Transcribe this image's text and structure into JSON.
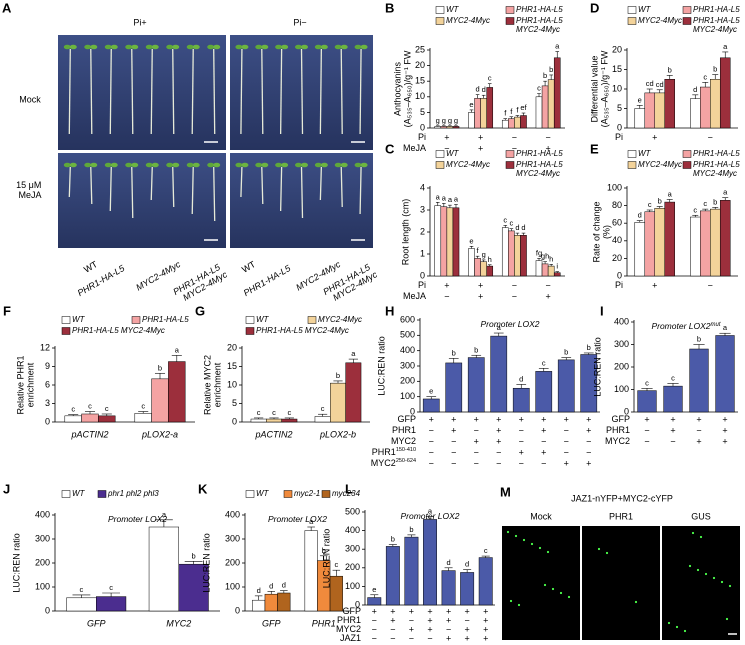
{
  "photo_panels": [
    {
      "panel": "A",
      "columns": [
        "Pi+",
        "Pi−"
      ],
      "rows": [
        "Mock",
        "15 μM MeJA"
      ],
      "genotypes": [
        "WT",
        "PHR1-HA-L5",
        "MYC2-4Myc",
        "PHR1-HA-L5 MYC2-4Myc"
      ]
    },
    {
      "panel": "M",
      "title": "JAZ1-nYFP+MYC2-cYFP",
      "columns": [
        "Mock",
        "PHR1",
        "GUS"
      ]
    }
  ],
  "chart_data": [
    {
      "panel": "B",
      "type": "bar",
      "ylabel": [
        "Anthocyanins",
        "(A₅₃₅–A₆₅₀)/g⁻¹ FW"
      ],
      "ylim": [
        0,
        25
      ],
      "yticks": [
        0,
        5,
        10,
        15,
        20,
        25
      ],
      "factor_rows": [
        {
          "label": "Pi",
          "signs": [
            "+",
            "+",
            "−",
            "−"
          ]
        },
        {
          "label": "MeJA",
          "signs": [
            "−",
            "+",
            "−",
            "+"
          ]
        }
      ],
      "series": [
        {
          "name": "WT",
          "color": "#ffffff",
          "values": [
            0.5,
            5,
            2.5,
            10
          ],
          "errors": [
            0.2,
            0.8,
            0.5,
            1
          ],
          "letters": [
            "g",
            "e",
            "f",
            "c"
          ]
        },
        {
          "name": "PHR1-HA-L5",
          "color": "#f4a3a3",
          "values": [
            0.5,
            9.5,
            3,
            13.5
          ],
          "errors": [
            0.2,
            1.2,
            0.6,
            1.5
          ],
          "letters": [
            "g",
            "d",
            "f",
            "b"
          ]
        },
        {
          "name": "MYC2-4Myc",
          "color": "#f3d39a",
          "values": [
            0.5,
            9.5,
            3.5,
            15.5
          ],
          "errors": [
            0.2,
            1,
            0.5,
            1.5
          ],
          "letters": [
            "g",
            "d",
            "f",
            "b"
          ]
        },
        {
          "name": "PHR1-HA-L5 MYC2-4Myc",
          "color": "#9c2f3c",
          "values": [
            0.5,
            13,
            4,
            22.5
          ],
          "errors": [
            0.2,
            1.2,
            0.8,
            2
          ],
          "letters": [
            "g",
            "c",
            "ef",
            "a"
          ]
        }
      ]
    },
    {
      "panel": "C",
      "type": "bar",
      "ylabel": [
        "Root length (cm)"
      ],
      "ylim": [
        0,
        4
      ],
      "yticks": [
        0,
        1,
        2,
        3,
        4
      ],
      "factor_rows": [
        {
          "label": "Pi",
          "signs": [
            "+",
            "+",
            "−",
            "−"
          ]
        },
        {
          "label": "MeJA",
          "signs": [
            "−",
            "+",
            "−",
            "+"
          ]
        }
      ],
      "series": [
        {
          "name": "WT",
          "color": "#ffffff",
          "values": [
            3.2,
            1.25,
            2.2,
            0.7
          ],
          "errors": [
            0.15,
            0.1,
            0.1,
            0.1
          ],
          "letters": [
            "a",
            "e",
            "c",
            "fg"
          ]
        },
        {
          "name": "PHR1-HA-L5",
          "color": "#f4a3a3",
          "values": [
            3.15,
            0.8,
            2.05,
            0.55
          ],
          "errors": [
            0.15,
            0.1,
            0.1,
            0.1
          ],
          "letters": [
            "a",
            "f",
            "c",
            "gh"
          ]
        },
        {
          "name": "MYC2-4Myc",
          "color": "#f3d39a",
          "values": [
            3.1,
            0.65,
            1.85,
            0.45
          ],
          "errors": [
            0.12,
            0.08,
            0.1,
            0.08
          ],
          "letters": [
            "a",
            "g",
            "d",
            "h"
          ]
        },
        {
          "name": "PHR1-HA-L5 MYC2-4Myc",
          "color": "#9c2f3c",
          "values": [
            3.1,
            0.45,
            1.85,
            0.15
          ],
          "errors": [
            0.15,
            0.06,
            0.1,
            0.05
          ],
          "letters": [
            "a",
            "h",
            "d",
            "i"
          ]
        }
      ]
    },
    {
      "panel": "D",
      "type": "bar",
      "ylabel": [
        "Differential value",
        "(A₅₃₅–A₆₅₀)/g⁻¹ FW"
      ],
      "ylim": [
        0,
        20
      ],
      "yticks": [
        0,
        5,
        10,
        15,
        20
      ],
      "factor_rows": [
        {
          "label": "Pi",
          "signs": [
            "+",
            "−"
          ]
        }
      ],
      "series": [
        {
          "name": "WT",
          "color": "#ffffff",
          "values": [
            5,
            7.5
          ],
          "errors": [
            0.8,
            1
          ],
          "letters": [
            "e",
            "d"
          ]
        },
        {
          "name": "PHR1-HA-L5",
          "color": "#f4a3a3",
          "values": [
            9,
            10.5
          ],
          "errors": [
            1,
            1.2
          ],
          "letters": [
            "cd",
            "c"
          ]
        },
        {
          "name": "MYC2-4Myc",
          "color": "#f3d39a",
          "values": [
            9,
            12.5
          ],
          "errors": [
            0.8,
            1.2
          ],
          "letters": [
            "cd",
            "b"
          ]
        },
        {
          "name": "PHR1-HA-L5 MYC2-4Myc",
          "color": "#9c2f3c",
          "values": [
            12.5,
            18
          ],
          "errors": [
            1,
            1.5
          ],
          "letters": [
            "b",
            "a"
          ]
        }
      ]
    },
    {
      "panel": "E",
      "type": "bar",
      "ylabel": [
        "Rate of change",
        "(%)"
      ],
      "ylim": [
        0,
        100
      ],
      "yticks": [
        0,
        20,
        40,
        60,
        80,
        100
      ],
      "factor_rows": [
        {
          "label": "Pi",
          "signs": [
            "+",
            "−"
          ]
        }
      ],
      "series": [
        {
          "name": "WT",
          "color": "#ffffff",
          "values": [
            61,
            67
          ],
          "errors": [
            2,
            2
          ],
          "letters": [
            "d",
            "c"
          ]
        },
        {
          "name": "PHR1-HA-L5",
          "color": "#f4a3a3",
          "values": [
            73,
            74
          ],
          "errors": [
            2,
            2
          ],
          "letters": [
            "c",
            "c"
          ]
        },
        {
          "name": "MYC2-4Myc",
          "color": "#f3d39a",
          "values": [
            77,
            76
          ],
          "errors": [
            2,
            2
          ],
          "letters": [
            "b",
            "b"
          ]
        },
        {
          "name": "PHR1-HA-L5 MYC2-4Myc",
          "color": "#9c2f3c",
          "values": [
            84,
            86
          ],
          "errors": [
            3,
            3
          ],
          "letters": [
            "a",
            "a"
          ]
        }
      ]
    },
    {
      "panel": "F",
      "type": "bar",
      "ylabel": [
        "Relative PHR1",
        "enrichment"
      ],
      "ylim": [
        0,
        12
      ],
      "yticks": [
        0,
        3,
        6,
        9,
        12
      ],
      "categories": [
        "pACTIN2",
        "pLOX2-a"
      ],
      "series": [
        {
          "name": "WT",
          "color": "#ffffff",
          "values": [
            1,
            1.4
          ],
          "errors": [
            0.2,
            0.3
          ],
          "letters": [
            "c",
            "c"
          ]
        },
        {
          "name": "PHR1-HA-L5",
          "color": "#f4a3a3",
          "values": [
            1.3,
            7
          ],
          "errors": [
            0.4,
            0.9
          ],
          "letters": [
            "c",
            "b"
          ]
        },
        {
          "name": "PHR1-HA-L5 MYC2-4Myc",
          "color": "#9c2f3c",
          "values": [
            1,
            9.8
          ],
          "errors": [
            0.3,
            1
          ],
          "letters": [
            "c",
            "a"
          ]
        }
      ]
    },
    {
      "panel": "G",
      "type": "bar",
      "ylabel": [
        "Relative MYC2",
        "enrichment"
      ],
      "ylim": [
        0,
        20
      ],
      "yticks": [
        0,
        5,
        10,
        15,
        20
      ],
      "categories": [
        "pACTIN2",
        "pLOX2-b"
      ],
      "series": [
        {
          "name": "WT",
          "color": "#ffffff",
          "values": [
            0.8,
            1.5
          ],
          "errors": [
            0.3,
            0.6
          ],
          "letters": [
            "c",
            "c"
          ]
        },
        {
          "name": "MYC2-4Myc",
          "color": "#f3d39a",
          "values": [
            0.8,
            10.5
          ],
          "errors": [
            0.3,
            0.6
          ],
          "letters": [
            "c",
            "b"
          ]
        },
        {
          "name": "PHR1-HA-L5 MYC2-4Myc",
          "color": "#9c2f3c",
          "values": [
            0.8,
            16
          ],
          "errors": [
            0.3,
            1
          ],
          "letters": [
            "c",
            "a"
          ]
        }
      ]
    },
    {
      "panel": "H",
      "type": "bar",
      "ylabel": [
        "LUC:REN ratio"
      ],
      "ylim": [
        0,
        600
      ],
      "yticks": [
        0,
        100,
        200,
        300,
        400,
        500,
        600
      ],
      "annotation": "Promoter LOX2",
      "color": "#4b5aa8",
      "values": [
        85,
        320,
        355,
        495,
        155,
        265,
        340,
        375
      ],
      "errors": [
        15,
        30,
        15,
        20,
        25,
        20,
        15,
        10
      ],
      "letters": [
        "e",
        "b",
        "b",
        "a",
        "d",
        "c",
        "b",
        "b"
      ],
      "factor_rows": [
        {
          "label": "GFP",
          "signs": [
            "+",
            "+",
            "+",
            "+",
            "+",
            "+",
            "+",
            "+"
          ]
        },
        {
          "label": "PHR1",
          "signs": [
            "−",
            "+",
            "−",
            "+",
            "−",
            "+",
            "−",
            "+"
          ]
        },
        {
          "label": "MYC2",
          "signs": [
            "−",
            "−",
            "+",
            "+",
            "−",
            "−",
            "−",
            "−"
          ]
        },
        {
          "label": "PHR1",
          "sup": "150-410",
          "signs": [
            "−",
            "−",
            "−",
            "−",
            "+",
            "+",
            "−",
            "−"
          ]
        },
        {
          "label": "MYC2",
          "sup": "250-624",
          "signs": [
            "−",
            "−",
            "−",
            "−",
            "−",
            "−",
            "+",
            "+"
          ]
        }
      ]
    },
    {
      "panel": "I",
      "type": "bar",
      "ylabel": [
        "LUC:REN ratio"
      ],
      "ylim": [
        0,
        400
      ],
      "yticks": [
        0,
        100,
        200,
        300,
        400
      ],
      "annotation": "Promoter LOX2",
      "annotation_sup": "mut",
      "color": "#4b5aa8",
      "values": [
        95,
        115,
        280,
        340
      ],
      "errors": [
        10,
        12,
        20,
        10
      ],
      "letters": [
        "c",
        "c",
        "b",
        "a"
      ],
      "factor_rows": [
        {
          "label": "GFP",
          "signs": [
            "+",
            "+",
            "+",
            "+"
          ]
        },
        {
          "label": "PHR1",
          "signs": [
            "−",
            "+",
            "−",
            "+"
          ]
        },
        {
          "label": "MYC2",
          "signs": [
            "−",
            "−",
            "+",
            "+"
          ]
        }
      ]
    },
    {
      "panel": "J",
      "type": "bar",
      "ylabel": [
        "LUC:REN ratio"
      ],
      "ylim": [
        0,
        400
      ],
      "yticks": [
        0,
        100,
        200,
        300,
        400
      ],
      "annotation": "Promoter LOX2",
      "categories": [
        "GFP",
        "MYC2"
      ],
      "series": [
        {
          "name": "WT",
          "color": "#ffffff",
          "values": [
            55,
            350
          ],
          "errors": [
            12,
            30
          ],
          "letters": [
            "c",
            "a"
          ]
        },
        {
          "name": "phr1 phl2 phl3",
          "color": "#4b2d8f",
          "values": [
            60,
            195
          ],
          "errors": [
            15,
            12
          ],
          "letters": [
            "c",
            "b"
          ]
        }
      ]
    },
    {
      "panel": "K",
      "type": "bar",
      "ylabel": [
        "LUC:REN ratio"
      ],
      "ylim": [
        0,
        400
      ],
      "yticks": [
        0,
        100,
        200,
        300,
        400
      ],
      "annotation": "Promoter LOX2",
      "categories": [
        "GFP",
        "PHR1"
      ],
      "series": [
        {
          "name": "WT",
          "color": "#ffffff",
          "values": [
            45,
            335
          ],
          "errors": [
            18,
            15
          ],
          "letters": [
            "d",
            "a"
          ]
        },
        {
          "name": "myc2-1",
          "color": "#f08a3c",
          "values": [
            70,
            210
          ],
          "errors": [
            12,
            20
          ],
          "letters": [
            "d",
            "b"
          ]
        },
        {
          "name": "myc234",
          "color": "#b0641e",
          "values": [
            75,
            145
          ],
          "errors": [
            10,
            25
          ],
          "letters": [
            "d",
            "c"
          ]
        }
      ]
    },
    {
      "panel": "L",
      "type": "bar",
      "ylabel": [
        "LUC:REN ratio"
      ],
      "ylim": [
        0,
        500
      ],
      "yticks": [
        0,
        100,
        200,
        300,
        400,
        500
      ],
      "annotation": "Promoter LOX2",
      "color": "#4b5aa8",
      "values": [
        40,
        315,
        365,
        460,
        185,
        175,
        255
      ],
      "errors": [
        15,
        10,
        12,
        15,
        15,
        15,
        8
      ],
      "letters": [
        "e",
        "b",
        "b",
        "a",
        "d",
        "d",
        "c"
      ],
      "factor_rows": [
        {
          "label": "GFP",
          "signs": [
            "+",
            "+",
            "+",
            "+",
            "+",
            "+",
            "+"
          ]
        },
        {
          "label": "PHR1",
          "signs": [
            "−",
            "+",
            "−",
            "+",
            "+",
            "−",
            "+"
          ]
        },
        {
          "label": "MYC2",
          "signs": [
            "−",
            "−",
            "+",
            "+",
            "−",
            "+",
            "+"
          ]
        },
        {
          "label": "JAZ1",
          "signs": [
            "−",
            "−",
            "−",
            "−",
            "+",
            "+",
            "+"
          ]
        }
      ]
    }
  ]
}
